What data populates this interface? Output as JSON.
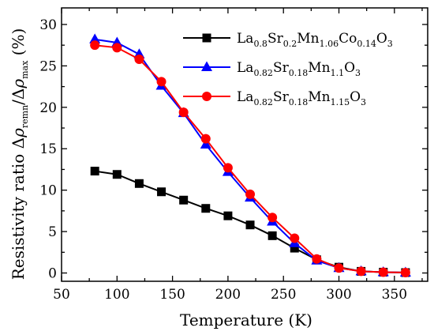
{
  "chart_data": {
    "type": "line",
    "xlabel": "Temperature (K)",
    "ylabel_parts": [
      "Resistivity ratio Δ",
      "ρ",
      "remn",
      "/Δ",
      "ρ",
      "max",
      " (%)"
    ],
    "xlim": [
      50,
      380
    ],
    "ylim": [
      -1,
      32
    ],
    "x_ticks": [
      50,
      100,
      150,
      200,
      250,
      300,
      350
    ],
    "y_ticks": [
      0,
      5,
      10,
      15,
      20,
      25,
      30
    ],
    "x": [
      80,
      100,
      120,
      140,
      160,
      180,
      200,
      220,
      240,
      260,
      280,
      300,
      320,
      340,
      360
    ],
    "series": [
      {
        "name": "La0.8Sr0.2Mn1.06Co0.14O3",
        "name_parts": [
          [
            "La",
            ""
          ],
          [
            "0.8",
            "sub"
          ],
          [
            "Sr",
            ""
          ],
          [
            "0.2",
            "sub"
          ],
          [
            "Mn",
            ""
          ],
          [
            "1.06",
            "sub"
          ],
          [
            "Co",
            ""
          ],
          [
            "0.14",
            "sub"
          ],
          [
            "O",
            ""
          ],
          [
            "3",
            "sub"
          ]
        ],
        "color": "#000000",
        "marker": "square",
        "values": [
          12.3,
          11.9,
          10.8,
          9.8,
          8.8,
          7.8,
          6.9,
          5.8,
          4.5,
          3.0,
          1.6,
          0.7,
          0.2,
          0.1,
          0.05
        ]
      },
      {
        "name": "La0.82Sr0.18Mn1.1O3",
        "name_parts": [
          [
            "La",
            ""
          ],
          [
            "0.82",
            "sub"
          ],
          [
            "Sr",
            ""
          ],
          [
            "0.18",
            "sub"
          ],
          [
            "Mn",
            ""
          ],
          [
            "1.1",
            "sub"
          ],
          [
            "O",
            ""
          ],
          [
            "3",
            "sub"
          ]
        ],
        "color": "#0000ff",
        "marker": "triangle",
        "values": [
          28.2,
          27.8,
          26.4,
          22.6,
          19.3,
          15.5,
          12.2,
          9.1,
          6.2,
          3.6,
          1.5,
          0.6,
          0.2,
          0.1,
          0.05
        ]
      },
      {
        "name": "La0.82Sr0.18Mn1.15O3",
        "name_parts": [
          [
            "La",
            ""
          ],
          [
            "0.82",
            "sub"
          ],
          [
            "Sr",
            ""
          ],
          [
            "0.18",
            "sub"
          ],
          [
            "Mn",
            ""
          ],
          [
            "1.15",
            "sub"
          ],
          [
            "O",
            ""
          ],
          [
            "3",
            "sub"
          ]
        ],
        "color": "#ff0000",
        "marker": "circle",
        "values": [
          27.5,
          27.2,
          25.8,
          23.1,
          19.4,
          16.2,
          12.7,
          9.5,
          6.7,
          4.2,
          1.7,
          0.6,
          0.2,
          0.1,
          0.05
        ]
      }
    ],
    "legend_position": "top-right",
    "grid": false
  }
}
